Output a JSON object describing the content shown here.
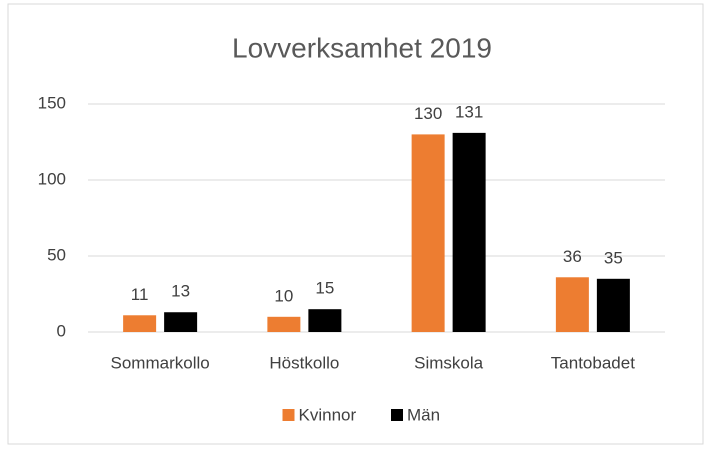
{
  "chart_data": {
    "type": "bar",
    "title": "Lovverksamhet 2019",
    "categories": [
      "Sommarkollo",
      "Höstkollo",
      "Simskola",
      "Tantobadet"
    ],
    "series": [
      {
        "name": "Kvinnor",
        "color": "#ed7d31",
        "values": [
          11,
          10,
          130,
          36
        ]
      },
      {
        "name": "Män",
        "color": "#000000",
        "values": [
          13,
          15,
          131,
          35
        ]
      }
    ],
    "ylim": [
      0,
      150
    ],
    "yticks": [
      0,
      50,
      100,
      150
    ],
    "grid": true,
    "legend": "bottom",
    "data_labels": true
  }
}
